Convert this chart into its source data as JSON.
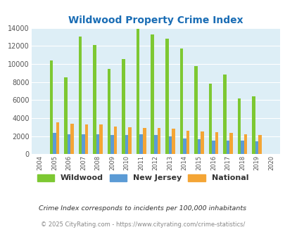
{
  "title": "Wildwood Property Crime Index",
  "years": [
    2004,
    2005,
    2006,
    2007,
    2008,
    2009,
    2010,
    2011,
    2012,
    2013,
    2014,
    2015,
    2016,
    2017,
    2018,
    2019,
    2020
  ],
  "wildwood": [
    0,
    10350,
    8550,
    13050,
    12100,
    9450,
    10550,
    13900,
    13250,
    12800,
    11700,
    9800,
    7850,
    8850,
    6200,
    6400,
    0
  ],
  "new_jersey": [
    0,
    2350,
    2250,
    2250,
    2250,
    2100,
    2150,
    2200,
    2100,
    1950,
    1750,
    1650,
    1550,
    1550,
    1500,
    1400,
    0
  ],
  "national": [
    0,
    3500,
    3400,
    3300,
    3300,
    3100,
    3000,
    2900,
    2900,
    2800,
    2600,
    2550,
    2450,
    2400,
    2200,
    2100,
    0
  ],
  "wildwood_color": "#7dc832",
  "nj_color": "#5b9bd5",
  "national_color": "#f4a535",
  "bg_color": "#ddeef6",
  "ylim": [
    0,
    14000
  ],
  "yticks": [
    0,
    2000,
    4000,
    6000,
    8000,
    10000,
    12000,
    14000
  ],
  "xlabel": "",
  "ylabel": "",
  "title_color": "#1a6db5",
  "title_fontsize": 10,
  "footnote1": "Crime Index corresponds to incidents per 100,000 inhabitants",
  "footnote2": "© 2025 CityRating.com - https://www.cityrating.com/crime-statistics/",
  "footnote1_color": "#333333",
  "footnote2_color": "#888888",
  "bar_width": 0.22
}
